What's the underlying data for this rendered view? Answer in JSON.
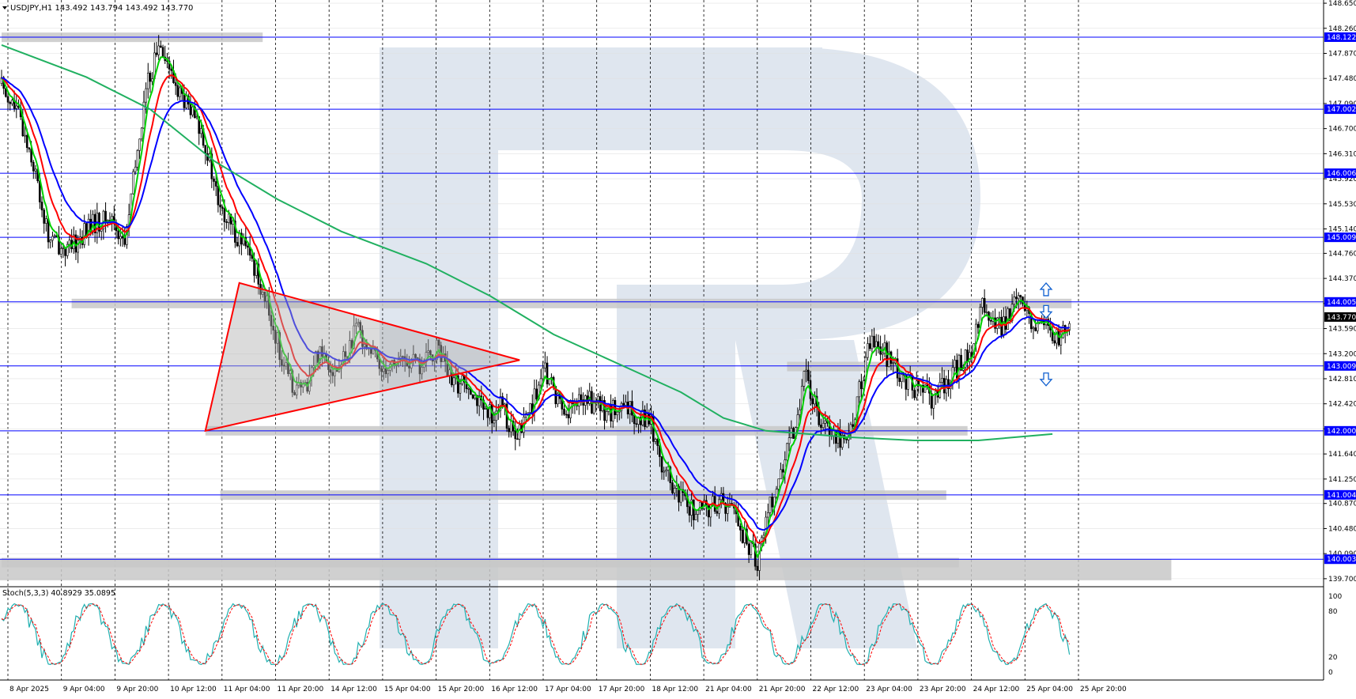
{
  "header": {
    "symbol_line": "USDJPY,H1  143.492 143.794 143.492 143.770",
    "stoch_line": "Stoch(5,3,3) 40.8929 35.0895"
  },
  "colors": {
    "background": "#ffffff",
    "axis": "#000000",
    "grid": "#000000",
    "level_line": "#0000ff",
    "zone": "#c8c8c8",
    "ema_fast": "#00d000",
    "ema_mid": "#ff0000",
    "ema_slow": "#0000ff",
    "ma_long": "#20b060",
    "triangle": "#ff0000",
    "stoch_main": "#20b0b0",
    "stoch_signal": "#ff0000",
    "arrow": "#1060d0",
    "watermark": "#dfe6ef"
  },
  "chart_data": [
    {
      "type": "candlestick",
      "title": "USDJPY,H1",
      "ohlc_last": {
        "open": 143.492,
        "high": 143.794,
        "low": 143.492,
        "close": 143.77
      },
      "current_price": "143.770",
      "ylim": [
        139.6,
        148.7
      ],
      "y_ticks": [
        "148.650",
        "148.260",
        "147.870",
        "147.480",
        "147.090",
        "146.700",
        "146.310",
        "145.920",
        "145.530",
        "145.140",
        "144.760",
        "144.370",
        "143.980",
        "143.590",
        "143.200",
        "142.810",
        "142.420",
        "142.030",
        "141.640",
        "141.250",
        "140.870",
        "140.480",
        "140.090",
        "139.700"
      ],
      "x_ticks": [
        "8 Apr 2025",
        "9 Apr 04:00",
        "9 Apr 20:00",
        "10 Apr 12:00",
        "11 Apr 04:00",
        "11 Apr 20:00",
        "14 Apr 12:00",
        "15 Apr 04:00",
        "15 Apr 20:00",
        "16 Apr 12:00",
        "17 Apr 04:00",
        "17 Apr 20:00",
        "18 Apr 12:00",
        "21 Apr 04:00",
        "21 Apr 20:00",
        "22 Apr 12:00",
        "23 Apr 04:00",
        "23 Apr 20:00",
        "24 Apr 12:00",
        "25 Apr 04:00",
        "25 Apr 20:00"
      ],
      "levels": [
        "148.122",
        "147.002",
        "146.006",
        "145.009",
        "144.005",
        "143.009",
        "142.000",
        "141.004",
        "140.003"
      ],
      "grid": true,
      "anchors": [
        [
          0,
          147.4
        ],
        [
          8,
          146.9
        ],
        [
          14,
          146.3
        ],
        [
          22,
          145.0
        ],
        [
          32,
          144.8
        ],
        [
          42,
          145.2
        ],
        [
          52,
          145.3
        ],
        [
          58,
          144.9
        ],
        [
          68,
          147.3
        ],
        [
          75,
          148.1
        ],
        [
          80,
          147.5
        ],
        [
          88,
          147.0
        ],
        [
          95,
          146.6
        ],
        [
          103,
          145.4
        ],
        [
          112,
          145.0
        ],
        [
          120,
          144.5
        ],
        [
          128,
          143.6
        ],
        [
          135,
          142.8
        ],
        [
          142,
          142.6
        ],
        [
          150,
          143.3
        ],
        [
          158,
          142.9
        ],
        [
          168,
          143.6
        ],
        [
          178,
          143.0
        ],
        [
          188,
          143.1
        ],
        [
          198,
          143.0
        ],
        [
          206,
          143.3
        ],
        [
          212,
          142.7
        ],
        [
          220,
          142.8
        ],
        [
          228,
          142.2
        ],
        [
          236,
          142.4
        ],
        [
          242,
          141.8
        ],
        [
          248,
          142.3
        ],
        [
          256,
          142.9
        ],
        [
          265,
          142.3
        ],
        [
          275,
          142.5
        ],
        [
          285,
          142.3
        ],
        [
          295,
          142.3
        ],
        [
          305,
          142.2
        ],
        [
          312,
          141.4
        ],
        [
          318,
          141.0
        ],
        [
          328,
          140.7
        ],
        [
          338,
          140.9
        ],
        [
          345,
          140.8
        ],
        [
          350,
          140.3
        ],
        [
          356,
          140.0
        ],
        [
          362,
          140.9
        ],
        [
          368,
          141.4
        ],
        [
          374,
          142.1
        ],
        [
          378,
          142.9
        ],
        [
          384,
          142.3
        ],
        [
          392,
          142.0
        ],
        [
          398,
          141.8
        ],
        [
          404,
          142.6
        ],
        [
          410,
          143.5
        ],
        [
          416,
          143.2
        ],
        [
          422,
          142.9
        ],
        [
          432,
          142.6
        ],
        [
          440,
          142.5
        ],
        [
          448,
          142.9
        ],
        [
          456,
          143.2
        ],
        [
          462,
          143.9
        ],
        [
          470,
          143.6
        ],
        [
          478,
          144.0
        ],
        [
          485,
          143.7
        ],
        [
          492,
          143.6
        ],
        [
          498,
          143.4
        ],
        [
          503,
          143.75
        ]
      ],
      "ohlc_bars": 504,
      "ema_fast_offsets": [
        [
          0,
          0.05
        ],
        [
          70,
          -0.6
        ],
        [
          100,
          0.3
        ],
        [
          200,
          0.0
        ],
        [
          350,
          0.2
        ],
        [
          400,
          0.0
        ],
        [
          504,
          0.0
        ]
      ],
      "ema_mid_offsets": [
        [
          0,
          0.25
        ],
        [
          70,
          -1.2
        ],
        [
          100,
          0.8
        ],
        [
          200,
          0.05
        ],
        [
          350,
          0.5
        ],
        [
          410,
          -0.6
        ],
        [
          504,
          -0.1
        ]
      ],
      "ema_slow_offsets": [
        [
          0,
          0.45
        ],
        [
          70,
          -1.8
        ],
        [
          100,
          1.4
        ],
        [
          200,
          0.1
        ],
        [
          350,
          0.8
        ],
        [
          410,
          -1.0
        ],
        [
          504,
          -0.25
        ]
      ],
      "ma_long": [
        [
          0,
          148.0
        ],
        [
          40,
          147.5
        ],
        [
          70,
          147.0
        ],
        [
          100,
          146.2
        ],
        [
          130,
          145.6
        ],
        [
          160,
          145.1
        ],
        [
          200,
          144.6
        ],
        [
          230,
          144.1
        ],
        [
          260,
          143.5
        ],
        [
          300,
          142.9
        ],
        [
          320,
          142.6
        ],
        [
          340,
          142.2
        ],
        [
          360,
          142.0
        ],
        [
          380,
          141.95
        ],
        [
          400,
          141.9
        ],
        [
          430,
          141.85
        ],
        [
          460,
          141.85
        ],
        [
          495,
          141.95
        ]
      ],
      "triangle": {
        "vertices_time_price": [
          [
            112,
            144.3
          ],
          [
            244,
            143.1
          ],
          [
            96,
            142.0
          ]
        ]
      },
      "zones": [
        {
          "from_bar": 0,
          "to_bar": 123,
          "price": 148.12
        },
        {
          "from_bar": 33,
          "to_bar": 504,
          "price": 143.98
        },
        {
          "from_bar": 370,
          "to_bar": 455,
          "price": 143.0
        },
        {
          "from_bar": 96,
          "to_bar": 455,
          "price": 142.0
        },
        {
          "from_bar": 103,
          "to_bar": 445,
          "price": 141.0
        },
        {
          "from_bar": 0,
          "to_bar": 451,
          "price": 139.95
        }
      ],
      "arrows": [
        {
          "dir": "up",
          "bar": 492,
          "price": 144.2
        },
        {
          "dir": "down",
          "bar": 492,
          "price": 143.85
        },
        {
          "dir": "down",
          "bar": 492,
          "price": 142.8
        }
      ]
    },
    {
      "type": "line",
      "title": "Stoch(5,3,3)",
      "series": [
        {
          "name": "main",
          "last": 40.8929
        },
        {
          "name": "signal",
          "last": 35.0895
        }
      ],
      "ylim": [
        0,
        100
      ],
      "y_ticks": [
        "100",
        "80",
        "20",
        "0"
      ]
    }
  ]
}
